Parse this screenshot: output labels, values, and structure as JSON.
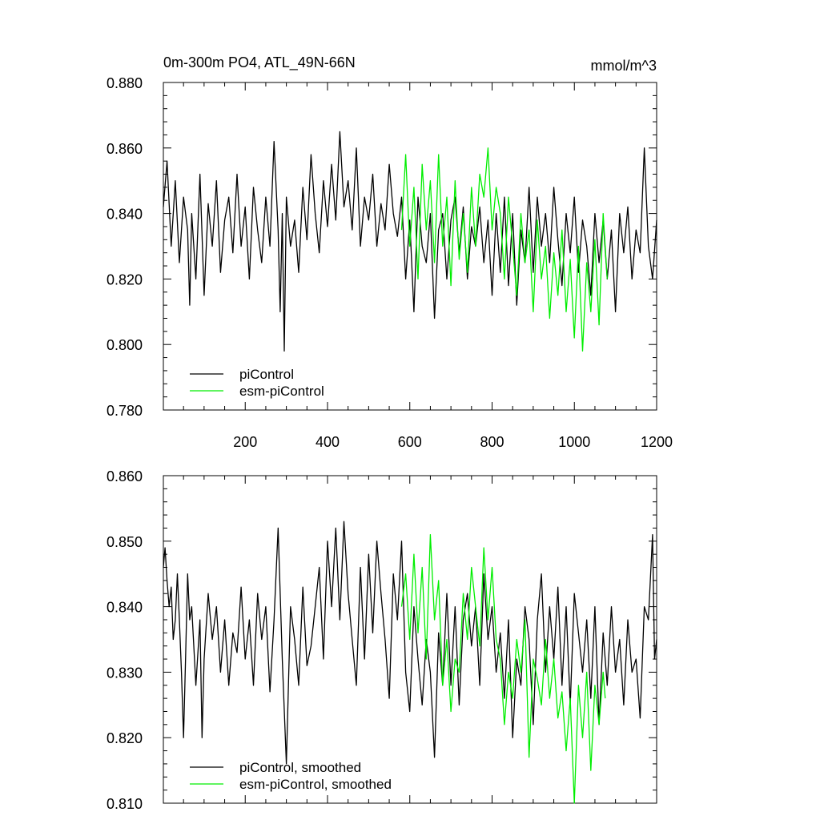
{
  "chart_data": [
    {
      "type": "line",
      "title_left": "0m-300m PO4, ATL_49N-66N",
      "title_right": "mmol/m^3",
      "xlim": [
        1,
        1200
      ],
      "ylim": [
        0.78,
        0.88
      ],
      "x_ticks": [
        200,
        400,
        600,
        800,
        1000,
        1200
      ],
      "x_tick_labels": [
        "200",
        "400",
        "600",
        "800",
        "1000",
        "1200"
      ],
      "y_ticks": [
        0.78,
        0.8,
        0.82,
        0.84,
        0.86,
        0.88
      ],
      "y_tick_labels": [
        "0.780",
        "0.800",
        "0.820",
        "0.840",
        "0.860",
        "0.880"
      ],
      "legend_position": "bottom-left",
      "series": [
        {
          "name": "piControl",
          "color": "#000000",
          "x": [
            1,
            10,
            20,
            30,
            40,
            50,
            60,
            65,
            70,
            80,
            90,
            100,
            110,
            120,
            130,
            140,
            150,
            160,
            170,
            180,
            190,
            200,
            210,
            220,
            230,
            240,
            250,
            260,
            270,
            280,
            285,
            290,
            295,
            300,
            310,
            320,
            330,
            340,
            350,
            360,
            370,
            380,
            390,
            400,
            410,
            420,
            430,
            440,
            450,
            460,
            470,
            480,
            490,
            500,
            510,
            520,
            530,
            540,
            550,
            560,
            570,
            580,
            590,
            600,
            610,
            620,
            630,
            640,
            650,
            660,
            670,
            680,
            690,
            700,
            710,
            720,
            730,
            740,
            750,
            760,
            770,
            780,
            790,
            800,
            810,
            820,
            830,
            840,
            850,
            860,
            870,
            880,
            890,
            900,
            910,
            920,
            930,
            940,
            950,
            960,
            970,
            980,
            990,
            1000,
            1010,
            1020,
            1030,
            1040,
            1050,
            1060,
            1070,
            1080,
            1090,
            1100,
            1110,
            1120,
            1130,
            1140,
            1150,
            1160,
            1170,
            1180,
            1190,
            1200
          ],
          "y": [
            0.842,
            0.856,
            0.83,
            0.85,
            0.825,
            0.845,
            0.835,
            0.812,
            0.84,
            0.82,
            0.852,
            0.815,
            0.843,
            0.83,
            0.85,
            0.822,
            0.838,
            0.845,
            0.828,
            0.852,
            0.83,
            0.842,
            0.82,
            0.848,
            0.835,
            0.825,
            0.845,
            0.83,
            0.862,
            0.835,
            0.81,
            0.84,
            0.798,
            0.845,
            0.83,
            0.838,
            0.822,
            0.848,
            0.832,
            0.858,
            0.84,
            0.828,
            0.85,
            0.836,
            0.855,
            0.838,
            0.865,
            0.842,
            0.85,
            0.835,
            0.86,
            0.83,
            0.845,
            0.838,
            0.852,
            0.83,
            0.843,
            0.835,
            0.855,
            0.84,
            0.833,
            0.845,
            0.82,
            0.838,
            0.81,
            0.845,
            0.83,
            0.825,
            0.84,
            0.808,
            0.835,
            0.84,
            0.82,
            0.838,
            0.845,
            0.828,
            0.842,
            0.82,
            0.836,
            0.83,
            0.842,
            0.825,
            0.838,
            0.815,
            0.84,
            0.822,
            0.845,
            0.818,
            0.84,
            0.812,
            0.835,
            0.825,
            0.848,
            0.822,
            0.845,
            0.83,
            0.84,
            0.825,
            0.848,
            0.832,
            0.818,
            0.84,
            0.828,
            0.845,
            0.822,
            0.838,
            0.83,
            0.815,
            0.84,
            0.825,
            0.838,
            0.82,
            0.835,
            0.81,
            0.84,
            0.828,
            0.842,
            0.82,
            0.835,
            0.828,
            0.86,
            0.83,
            0.82,
            0.838
          ]
        },
        {
          "name": "esm-piControl",
          "color": "#00ee00",
          "x": [
            580,
            590,
            600,
            610,
            620,
            630,
            640,
            650,
            660,
            670,
            680,
            690,
            700,
            710,
            720,
            730,
            740,
            750,
            760,
            770,
            780,
            790,
            800,
            810,
            820,
            830,
            840,
            850,
            860,
            870,
            880,
            890,
            900,
            910,
            920,
            930,
            940,
            950,
            960,
            970,
            980,
            990,
            1000,
            1010,
            1020,
            1030,
            1040,
            1050,
            1060,
            1070,
            1080
          ],
          "y": [
            0.835,
            0.858,
            0.83,
            0.848,
            0.82,
            0.855,
            0.835,
            0.85,
            0.825,
            0.858,
            0.83,
            0.845,
            0.818,
            0.85,
            0.826,
            0.84,
            0.822,
            0.848,
            0.83,
            0.852,
            0.845,
            0.86,
            0.835,
            0.848,
            0.84,
            0.82,
            0.845,
            0.83,
            0.815,
            0.84,
            0.825,
            0.835,
            0.81,
            0.838,
            0.82,
            0.83,
            0.808,
            0.828,
            0.815,
            0.835,
            0.81,
            0.826,
            0.802,
            0.83,
            0.798,
            0.825,
            0.81,
            0.832,
            0.806,
            0.84,
            0.82
          ]
        }
      ]
    },
    {
      "type": "line",
      "xlim": [
        1,
        1200
      ],
      "ylim": [
        0.81,
        0.86
      ],
      "x_ticks": [
        200,
        400,
        600,
        800,
        1000,
        1200
      ],
      "y_ticks": [
        0.81,
        0.82,
        0.83,
        0.84,
        0.85,
        0.86
      ],
      "y_tick_labels": [
        "0.810",
        "0.820",
        "0.830",
        "0.840",
        "0.850",
        "0.860"
      ],
      "legend_position": "bottom-left",
      "series": [
        {
          "name": "piControl, smoothed",
          "color": "#000000",
          "x": [
            1,
            5,
            10,
            15,
            20,
            25,
            30,
            35,
            40,
            45,
            50,
            55,
            60,
            65,
            70,
            80,
            90,
            95,
            100,
            110,
            120,
            130,
            140,
            150,
            160,
            170,
            180,
            190,
            200,
            210,
            220,
            230,
            240,
            250,
            260,
            270,
            280,
            290,
            300,
            310,
            320,
            330,
            340,
            350,
            360,
            370,
            380,
            390,
            400,
            410,
            420,
            430,
            440,
            450,
            460,
            470,
            480,
            490,
            500,
            510,
            520,
            530,
            540,
            550,
            560,
            570,
            580,
            590,
            600,
            610,
            620,
            630,
            640,
            650,
            660,
            670,
            680,
            690,
            700,
            710,
            720,
            730,
            740,
            750,
            760,
            770,
            780,
            790,
            800,
            810,
            820,
            830,
            840,
            850,
            860,
            870,
            880,
            890,
            900,
            910,
            920,
            930,
            940,
            950,
            960,
            970,
            980,
            990,
            1000,
            1010,
            1020,
            1030,
            1040,
            1050,
            1060,
            1070,
            1080,
            1090,
            1100,
            1110,
            1120,
            1130,
            1140,
            1150,
            1160,
            1170,
            1180,
            1190,
            1195,
            1200
          ],
          "y": [
            0.846,
            0.849,
            0.844,
            0.84,
            0.843,
            0.835,
            0.838,
            0.845,
            0.838,
            0.83,
            0.82,
            0.832,
            0.845,
            0.838,
            0.84,
            0.828,
            0.838,
            0.82,
            0.832,
            0.842,
            0.835,
            0.84,
            0.83,
            0.838,
            0.828,
            0.836,
            0.833,
            0.843,
            0.832,
            0.838,
            0.828,
            0.842,
            0.835,
            0.84,
            0.827,
            0.838,
            0.852,
            0.832,
            0.816,
            0.84,
            0.835,
            0.828,
            0.843,
            0.831,
            0.834,
            0.84,
            0.846,
            0.832,
            0.85,
            0.84,
            0.852,
            0.838,
            0.853,
            0.842,
            0.835,
            0.828,
            0.846,
            0.832,
            0.848,
            0.836,
            0.85,
            0.842,
            0.835,
            0.826,
            0.845,
            0.838,
            0.85,
            0.83,
            0.824,
            0.84,
            0.832,
            0.825,
            0.835,
            0.83,
            0.817,
            0.836,
            0.828,
            0.842,
            0.828,
            0.84,
            0.825,
            0.838,
            0.842,
            0.834,
            0.84,
            0.828,
            0.845,
            0.835,
            0.84,
            0.83,
            0.836,
            0.826,
            0.838,
            0.82,
            0.832,
            0.828,
            0.84,
            0.835,
            0.822,
            0.838,
            0.845,
            0.83,
            0.84,
            0.832,
            0.843,
            0.828,
            0.84,
            0.825,
            0.842,
            0.836,
            0.83,
            0.838,
            0.826,
            0.84,
            0.822,
            0.836,
            0.828,
            0.84,
            0.83,
            0.835,
            0.825,
            0.838,
            0.83,
            0.832,
            0.823,
            0.84,
            0.838,
            0.851,
            0.832,
            0.835
          ]
        },
        {
          "name": "esm-piControl, smoothed",
          "color": "#00ee00",
          "x": [
            580,
            590,
            600,
            610,
            620,
            630,
            640,
            650,
            660,
            670,
            680,
            690,
            700,
            710,
            720,
            730,
            740,
            750,
            760,
            770,
            780,
            790,
            800,
            810,
            820,
            830,
            840,
            850,
            860,
            870,
            880,
            890,
            900,
            910,
            920,
            930,
            940,
            950,
            960,
            970,
            980,
            990,
            1000,
            1010,
            1020,
            1030,
            1040,
            1050,
            1060,
            1070,
            1075
          ],
          "y": [
            0.84,
            0.845,
            0.835,
            0.848,
            0.836,
            0.846,
            0.832,
            0.851,
            0.838,
            0.844,
            0.828,
            0.835,
            0.824,
            0.832,
            0.83,
            0.842,
            0.835,
            0.846,
            0.84,
            0.834,
            0.849,
            0.838,
            0.846,
            0.835,
            0.832,
            0.822,
            0.83,
            0.826,
            0.835,
            0.83,
            0.838,
            0.817,
            0.832,
            0.829,
            0.825,
            0.835,
            0.826,
            0.832,
            0.823,
            0.827,
            0.818,
            0.826,
            0.81,
            0.828,
            0.82,
            0.83,
            0.815,
            0.828,
            0.822,
            0.83,
            0.826
          ]
        }
      ]
    }
  ]
}
